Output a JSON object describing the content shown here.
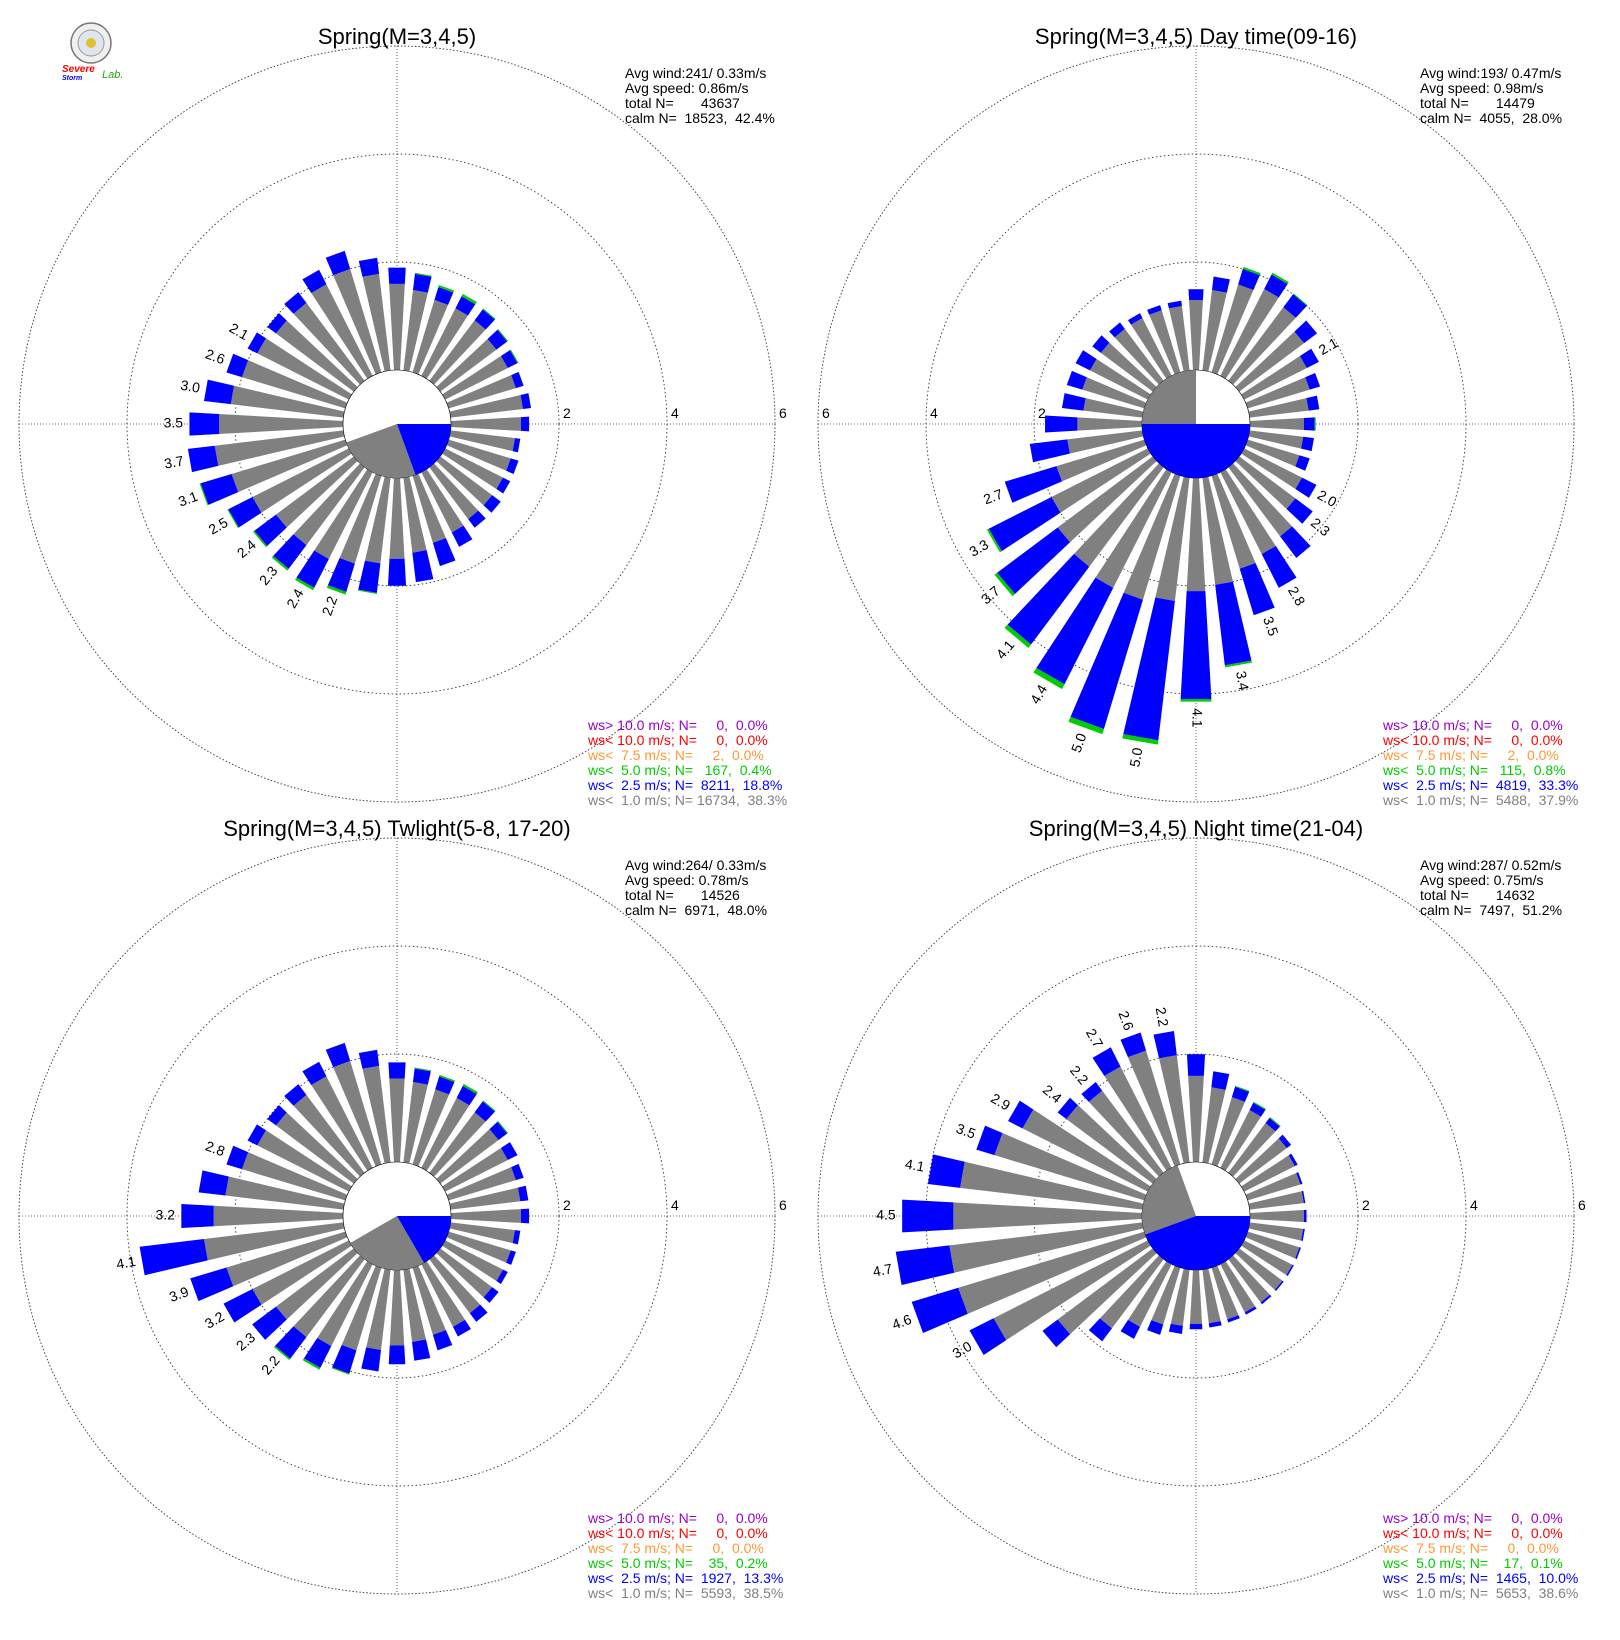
{
  "logo": {
    "text_a": "Severe",
    "text_b": "Storm",
    "text_c": "Lab."
  },
  "colors": {
    "gray": "#808080",
    "blue": "#0000ff",
    "green": "#00cc00",
    "orange": "#ff9933",
    "red": "#ff0000",
    "purple": "#9900cc",
    "grid": "#333333"
  },
  "chart_data": [
    {
      "type": "wind-rose",
      "title": "Spring(M=3,4,5)",
      "stats": [
        "Avg wind:241/ 0.33m/s",
        "Avg speed: 0.86m/s",
        "total N=       43637",
        "calm N=  18523,  42.4%"
      ],
      "legend": [
        {
          "cls": "ws> 10.0 m/s; N=",
          "n": "0",
          "pct": "0.0%",
          "color": "purple"
        },
        {
          "cls": "ws< 10.0 m/s; N=",
          "n": "0",
          "pct": "0.0%",
          "color": "red"
        },
        {
          "cls": "ws<  7.5 m/s; N=",
          "n": "2",
          "pct": "0.0%",
          "color": "orange"
        },
        {
          "cls": "ws<  5.0 m/s; N=",
          "n": "167",
          "pct": "0.4%",
          "color": "green"
        },
        {
          "cls": "ws<  2.5 m/s; N=",
          "n": "8211",
          "pct": "18.8%",
          "color": "blue"
        },
        {
          "cls": "ws<  1.0 m/s; N=",
          "n": "16734",
          "pct": "38.3%",
          "color": "gray"
        }
      ],
      "ring_labels": [
        "2",
        "4",
        "6"
      ],
      "ring_side": "right",
      "rmax": 7,
      "inner_base": 1,
      "calm_sector": {
        "from_deg": 90,
        "to_deg": 160,
        "r": 1.0
      },
      "bins_deg": 10,
      "directions": [
        0,
        10,
        20,
        30,
        40,
        50,
        60,
        70,
        80,
        90,
        100,
        110,
        120,
        130,
        140,
        150,
        160,
        170,
        180,
        190,
        200,
        210,
        220,
        230,
        240,
        250,
        260,
        270,
        280,
        290,
        300,
        310,
        320,
        330,
        340,
        350
      ],
      "gray": [
        1.6,
        1.5,
        1.4,
        1.4,
        1.4,
        1.3,
        1.3,
        1.3,
        1.35,
        1.3,
        1.2,
        1.2,
        1.2,
        1.2,
        1.2,
        1.25,
        1.3,
        1.4,
        1.5,
        1.6,
        1.7,
        1.8,
        1.8,
        1.8,
        2.0,
        2.2,
        2.4,
        2.3,
        2.1,
        2.0,
        1.9,
        1.8,
        1.8,
        1.9,
        2.0,
        1.8
      ],
      "blue": [
        0.3,
        0.3,
        0.25,
        0.25,
        0.25,
        0.25,
        0.2,
        0.15,
        0.15,
        0.15,
        0.1,
        0.15,
        0.15,
        0.2,
        0.2,
        0.3,
        0.45,
        0.55,
        0.5,
        0.55,
        0.55,
        0.6,
        0.55,
        0.5,
        0.5,
        0.6,
        0.5,
        0.55,
        0.5,
        0.3,
        0.2,
        0.2,
        0.25,
        0.3,
        0.35,
        0.3
      ],
      "green": [
        0,
        0.02,
        0.04,
        0.05,
        0.02,
        0.02,
        0.02,
        0,
        0,
        0,
        0,
        0,
        0,
        0,
        0,
        0,
        0,
        0,
        0,
        0.02,
        0.05,
        0.05,
        0.04,
        0.03,
        0.02,
        0.02,
        0,
        0,
        0,
        0,
        0,
        0,
        0,
        0,
        0,
        0
      ],
      "totals": [
        {
          "dir": 200,
          "label": "2.2"
        },
        {
          "dir": 210,
          "label": "2.4"
        },
        {
          "dir": 220,
          "label": "2.3"
        },
        {
          "dir": 230,
          "label": "2.4"
        },
        {
          "dir": 240,
          "label": "2.5"
        },
        {
          "dir": 250,
          "label": "3.1"
        },
        {
          "dir": 260,
          "label": "3.7"
        },
        {
          "dir": 270,
          "label": "3.5"
        },
        {
          "dir": 280,
          "label": "3.0"
        },
        {
          "dir": 290,
          "label": "2.6"
        },
        {
          "dir": 300,
          "label": "2.1"
        }
      ]
    },
    {
      "type": "wind-rose",
      "title": "Spring(M=3,4,5) Day time(09-16)",
      "stats": [
        "Avg wind:193/ 0.47m/s",
        "Avg speed: 0.98m/s",
        "total N=       14479",
        "calm N=  4055,  28.0%"
      ],
      "legend": [
        {
          "cls": "ws> 10.0 m/s; N=",
          "n": "0",
          "pct": "0.0%",
          "color": "purple"
        },
        {
          "cls": "ws< 10.0 m/s; N=",
          "n": "0",
          "pct": "0.0%",
          "color": "red"
        },
        {
          "cls": "ws<  7.5 m/s; N=",
          "n": "2",
          "pct": "0.0%",
          "color": "orange"
        },
        {
          "cls": "ws<  5.0 m/s; N=",
          "n": "115",
          "pct": "0.8%",
          "color": "green"
        },
        {
          "cls": "ws<  2.5 m/s; N=",
          "n": "4819",
          "pct": "33.3%",
          "color": "blue"
        },
        {
          "cls": "ws<  1.0 m/s; N=",
          "n": "5488",
          "pct": "37.9%",
          "color": "gray"
        }
      ],
      "ring_labels": [
        "2",
        "4",
        "6"
      ],
      "ring_side": "left",
      "rmax": 7,
      "inner_base": 1,
      "calm_sector": {
        "from_deg": 90,
        "to_deg": 270,
        "r": 1.0
      },
      "bins_deg": 10,
      "directions": [
        0,
        10,
        20,
        30,
        40,
        50,
        60,
        70,
        80,
        90,
        100,
        110,
        120,
        130,
        140,
        150,
        160,
        170,
        180,
        190,
        200,
        210,
        220,
        230,
        240,
        250,
        260,
        270,
        280,
        290,
        300,
        310,
        320,
        330,
        340,
        350
      ],
      "gray": [
        1.3,
        1.5,
        1.7,
        1.8,
        1.7,
        1.5,
        1.3,
        1.2,
        1.1,
        1.0,
        1.0,
        1.0,
        1.2,
        1.3,
        1.6,
        1.7,
        1.8,
        2.0,
        2.1,
        2.3,
        2.4,
        2.4,
        2.3,
        2.2,
        2.0,
        1.7,
        1.4,
        1.2,
        1.1,
        1.2,
        1.2,
        1.2,
        1.2,
        1.2,
        1.2,
        1.2
      ],
      "blue": [
        0.2,
        0.25,
        0.3,
        0.3,
        0.3,
        0.3,
        0.25,
        0.2,
        0.2,
        0.2,
        0.2,
        0.2,
        0.3,
        0.4,
        0.5,
        0.7,
        0.9,
        1.5,
        2.0,
        2.6,
        2.5,
        2.0,
        1.8,
        1.4,
        1.3,
        1.0,
        0.7,
        0.6,
        0.4,
        0.3,
        0.3,
        0.2,
        0.15,
        0.1,
        0.1,
        0.1
      ],
      "green": [
        0,
        0,
        0.04,
        0.04,
        0.02,
        0,
        0,
        0,
        0,
        0.02,
        0,
        0,
        0,
        0,
        0,
        0,
        0,
        0.04,
        0.05,
        0.08,
        0.1,
        0.1,
        0.08,
        0.06,
        0.04,
        0,
        0,
        0,
        0,
        0,
        0,
        0,
        0,
        0,
        0,
        0
      ],
      "totals": [
        {
          "dir": 60,
          "label": "2.1"
        },
        {
          "dir": 120,
          "label": "2.0"
        },
        {
          "dir": 130,
          "label": "2.3"
        },
        {
          "dir": 150,
          "label": "2.8"
        },
        {
          "dir": 160,
          "label": "3.5"
        },
        {
          "dir": 170,
          "label": "3.4"
        },
        {
          "dir": 180,
          "label": "4.1"
        },
        {
          "dir": 190,
          "label": "5.0"
        },
        {
          "dir": 200,
          "label": "5.0"
        },
        {
          "dir": 210,
          "label": "4.4"
        },
        {
          "dir": 220,
          "label": "4.1"
        },
        {
          "dir": 230,
          "label": "3.7"
        },
        {
          "dir": 240,
          "label": "3.3"
        },
        {
          "dir": 250,
          "label": "2.7"
        }
      ]
    },
    {
      "type": "wind-rose",
      "title": "Spring(M=3,4,5) Twlight(5-8, 17-20)",
      "stats": [
        "Avg wind:264/ 0.33m/s",
        "Avg speed: 0.78m/s",
        "total N=       14526",
        "calm N=  6971,  48.0%"
      ],
      "legend": [
        {
          "cls": "ws> 10.0 m/s; N=",
          "n": "0",
          "pct": "0.0%",
          "color": "purple"
        },
        {
          "cls": "ws< 10.0 m/s; N=",
          "n": "0",
          "pct": "0.0%",
          "color": "red"
        },
        {
          "cls": "ws<  7.5 m/s; N=",
          "n": "0",
          "pct": "0.0%",
          "color": "orange"
        },
        {
          "cls": "ws<  5.0 m/s; N=",
          "n": "35",
          "pct": "0.2%",
          "color": "green"
        },
        {
          "cls": "ws<  2.5 m/s; N=",
          "n": "1927",
          "pct": "13.3%",
          "color": "blue"
        },
        {
          "cls": "ws<  1.0 m/s; N=",
          "n": "5593",
          "pct": "38.5%",
          "color": "gray"
        }
      ],
      "ring_labels": [
        "2",
        "4",
        "6"
      ],
      "ring_side": "right",
      "rmax": 7,
      "inner_base": 1,
      "calm_sector": {
        "from_deg": 90,
        "to_deg": 150,
        "r": 1.0
      },
      "bins_deg": 10,
      "directions": [
        0,
        10,
        20,
        30,
        40,
        50,
        60,
        70,
        80,
        90,
        100,
        110,
        120,
        130,
        140,
        150,
        160,
        170,
        180,
        190,
        200,
        210,
        220,
        230,
        240,
        250,
        260,
        270,
        280,
        290,
        300,
        310,
        320,
        330,
        340,
        350
      ],
      "gray": [
        1.55,
        1.5,
        1.45,
        1.45,
        1.4,
        1.35,
        1.3,
        1.3,
        1.3,
        1.3,
        1.2,
        1.2,
        1.2,
        1.2,
        1.25,
        1.3,
        1.3,
        1.35,
        1.4,
        1.5,
        1.6,
        1.7,
        1.8,
        1.8,
        2.0,
        2.3,
        2.6,
        2.4,
        2.2,
        2.0,
        1.9,
        1.8,
        1.8,
        1.9,
        2.0,
        1.8
      ],
      "blue": [
        0.3,
        0.25,
        0.25,
        0.25,
        0.25,
        0.2,
        0.2,
        0.15,
        0.15,
        0.15,
        0.1,
        0.1,
        0.1,
        0.15,
        0.2,
        0.2,
        0.3,
        0.35,
        0.35,
        0.4,
        0.45,
        0.45,
        0.5,
        0.55,
        0.6,
        0.7,
        1.2,
        0.6,
        0.5,
        0.3,
        0.2,
        0.2,
        0.25,
        0.3,
        0.35,
        0.3
      ],
      "green": [
        0,
        0.02,
        0.03,
        0.04,
        0.02,
        0.02,
        0,
        0,
        0,
        0,
        0,
        0,
        0,
        0,
        0,
        0,
        0,
        0,
        0,
        0,
        0.02,
        0.04,
        0.03,
        0,
        0,
        0,
        0,
        0,
        0,
        0,
        0,
        0,
        0,
        0,
        0,
        0
      ],
      "totals": [
        {
          "dir": 220,
          "label": "2.2"
        },
        {
          "dir": 230,
          "label": "2.3"
        },
        {
          "dir": 240,
          "label": "3.2"
        },
        {
          "dir": 250,
          "label": "3.9"
        },
        {
          "dir": 260,
          "label": "4.1"
        },
        {
          "dir": 270,
          "label": "3.2"
        },
        {
          "dir": 290,
          "label": "2.8"
        }
      ]
    },
    {
      "type": "wind-rose",
      "title": "Spring(M=3,4,5) Night time(21-04)",
      "stats": [
        "Avg wind:287/ 0.52m/s",
        "Avg speed: 0.75m/s",
        "total N=       14632",
        "calm N=  7497,  51.2%"
      ],
      "legend": [
        {
          "cls": "ws> 10.0 m/s; N=",
          "n": "0",
          "pct": "0.0%",
          "color": "purple"
        },
        {
          "cls": "ws< 10.0 m/s; N=",
          "n": "0",
          "pct": "0.0%",
          "color": "red"
        },
        {
          "cls": "ws<  7.5 m/s; N=",
          "n": "0",
          "pct": "0.0%",
          "color": "orange"
        },
        {
          "cls": "ws<  5.0 m/s; N=",
          "n": "17",
          "pct": "0.1%",
          "color": "green"
        },
        {
          "cls": "ws<  2.5 m/s; N=",
          "n": "1465",
          "pct": "10.0%",
          "color": "blue"
        },
        {
          "cls": "ws<  1.0 m/s; N=",
          "n": "5653",
          "pct": "38.6%",
          "color": "gray"
        }
      ],
      "ring_labels": [
        "2",
        "4",
        "6"
      ],
      "ring_side": "right",
      "rmax": 7,
      "inner_base": 1,
      "calm_sector": {
        "from_deg": 90,
        "to_deg": 250,
        "r": 1.0
      },
      "bins_deg": 10,
      "directions": [
        0,
        10,
        20,
        30,
        40,
        50,
        60,
        70,
        80,
        90,
        100,
        110,
        120,
        130,
        140,
        150,
        160,
        170,
        180,
        190,
        200,
        210,
        220,
        230,
        240,
        250,
        260,
        270,
        280,
        290,
        300,
        310,
        320,
        330,
        340,
        350
      ],
      "gray": [
        1.6,
        1.4,
        1.3,
        1.2,
        1.15,
        1.1,
        1.05,
        1.02,
        1.01,
        1.0,
        1.0,
        1.0,
        1.0,
        1.0,
        1.0,
        1.0,
        1.0,
        1.0,
        1.0,
        1.05,
        1.1,
        1.3,
        1.6,
        2.2,
        3.2,
        3.6,
        3.6,
        3.5,
        3.4,
        2.9,
        2.6,
        2.0,
        1.9,
        2.1,
        2.2,
        2.0
      ],
      "blue": [
        0.4,
        0.3,
        0.2,
        0.15,
        0.12,
        0.1,
        0.06,
        0.04,
        0.03,
        0.05,
        0.03,
        0.03,
        0.03,
        0.03,
        0.04,
        0.05,
        0.06,
        0.08,
        0.1,
        0.15,
        0.2,
        0.25,
        0.3,
        0.35,
        0.5,
        0.9,
        1.0,
        0.95,
        0.6,
        0.35,
        0.3,
        0.2,
        0.2,
        0.4,
        0.35,
        0.45
      ],
      "green": [
        0,
        0,
        0.02,
        0.02,
        0.02,
        0,
        0,
        0,
        0,
        0,
        0,
        0,
        0,
        0,
        0,
        0,
        0,
        0,
        0,
        0,
        0,
        0,
        0,
        0,
        0,
        0,
        0,
        0,
        0,
        0,
        0,
        0,
        0,
        0,
        0,
        0
      ],
      "totals": [
        {
          "dir": 240,
          "label": "3.0"
        },
        {
          "dir": 250,
          "label": "4.6"
        },
        {
          "dir": 260,
          "label": "4.7"
        },
        {
          "dir": 270,
          "label": "4.5"
        },
        {
          "dir": 280,
          "label": "4.1"
        },
        {
          "dir": 290,
          "label": "3.5"
        },
        {
          "dir": 300,
          "label": "2.9"
        },
        {
          "dir": 310,
          "label": "2.4"
        },
        {
          "dir": 320,
          "label": "2.2"
        },
        {
          "dir": 330,
          "label": "2.7"
        },
        {
          "dir": 340,
          "label": "2.6"
        },
        {
          "dir": 350,
          "label": "2.2"
        }
      ]
    }
  ]
}
